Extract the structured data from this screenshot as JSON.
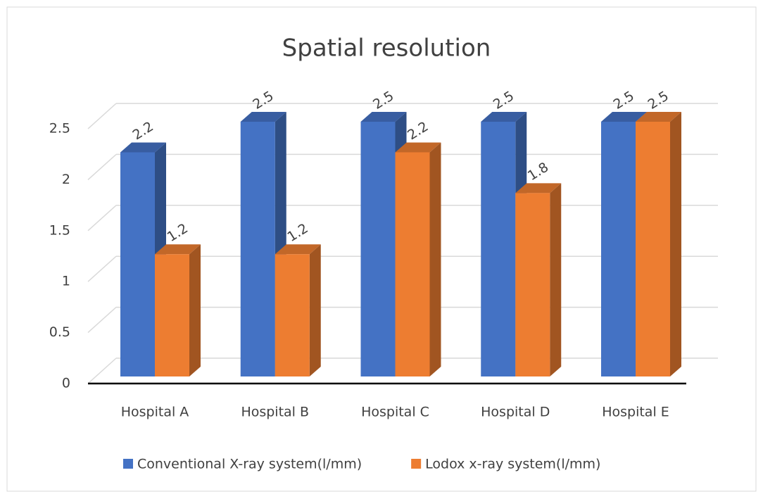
{
  "chart_data": {
    "type": "bar3d",
    "title": "Spatial resolution",
    "categories": [
      "Hospital A",
      "Hospital B",
      "Hospital C",
      "Hospital D",
      "Hospital E"
    ],
    "series": [
      {
        "name": "Conventional  X-ray system(l/mm)",
        "color": "#4472c4",
        "values": [
          2.2,
          2.5,
          2.5,
          2.5,
          2.5
        ]
      },
      {
        "name": "Lodox x-ray system(l/mm)",
        "color": "#ed7d31",
        "values": [
          1.2,
          1.2,
          2.2,
          1.8,
          2.5
        ]
      }
    ],
    "ylim": [
      0,
      2.5
    ],
    "yticks": [
      0,
      0.5,
      1,
      1.5,
      2,
      2.5
    ],
    "grid": true,
    "legend": "bottom"
  }
}
